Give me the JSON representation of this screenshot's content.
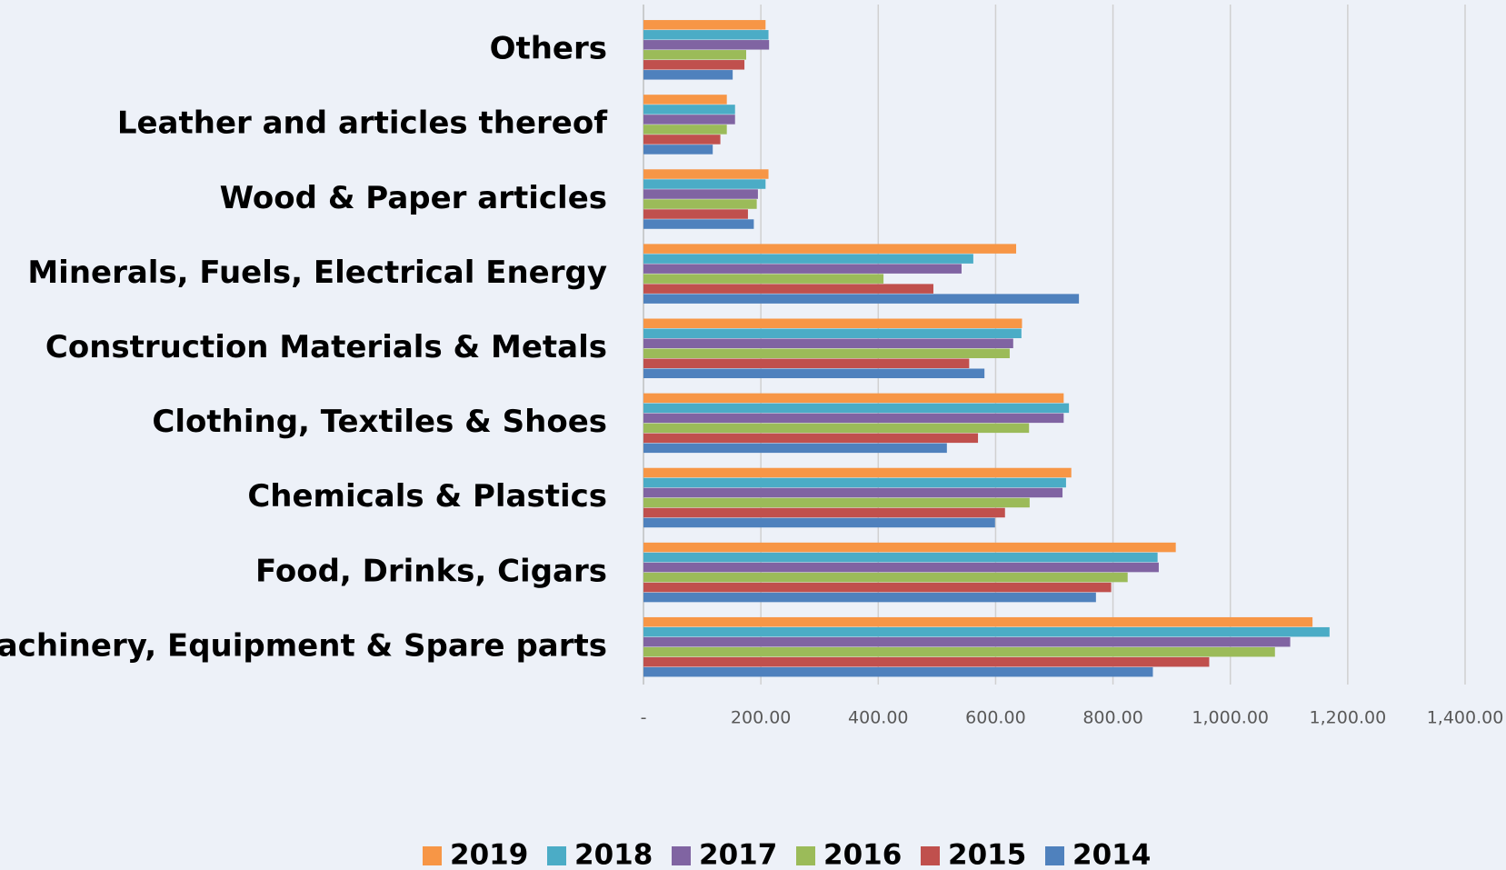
{
  "chart_data": {
    "type": "barh",
    "categories": [
      "Machinery, Equipment & Spare parts",
      "Food, Drinks, Cigars",
      "Chemicals & Plastics",
      "Clothing, Textiles & Shoes",
      "Construction Materials & Metals",
      "Minerals, Fuels, Electrical Energy",
      "Wood & Paper articles",
      "Leather and articles thereof",
      "Others"
    ],
    "series": [
      {
        "name": "2019",
        "color": "#f79646",
        "values": [
          1140,
          907,
          729,
          716,
          645,
          635,
          213,
          142,
          208
        ]
      },
      {
        "name": "2018",
        "color": "#4bacc6",
        "values": [
          1169,
          876,
          720,
          725,
          644,
          562,
          208,
          156,
          213
        ]
      },
      {
        "name": "2017",
        "color": "#8064a2",
        "values": [
          1102,
          878,
          714,
          716,
          630,
          542,
          195,
          156,
          214
        ]
      },
      {
        "name": "2016",
        "color": "#9bbb59",
        "values": [
          1076,
          825,
          658,
          657,
          624,
          409,
          193,
          142,
          175
        ]
      },
      {
        "name": "2015",
        "color": "#c0504d",
        "values": [
          964,
          797,
          616,
          570,
          555,
          494,
          178,
          131,
          172
        ]
      },
      {
        "name": "2014",
        "color": "#4f81bd",
        "values": [
          868,
          771,
          599,
          517,
          581,
          742,
          188,
          118,
          152
        ]
      }
    ],
    "xlim": [
      0,
      1400
    ],
    "xticks": [
      {
        "value": 0,
        "label": "-"
      },
      {
        "value": 200,
        "label": "200.00"
      },
      {
        "value": 400,
        "label": "400.00"
      },
      {
        "value": 600,
        "label": "600.00"
      },
      {
        "value": 800,
        "label": "800.00"
      },
      {
        "value": 1000,
        "label": "1,000.00"
      },
      {
        "value": 1200,
        "label": "1,200.00"
      },
      {
        "value": 1400,
        "label": "1,400.00"
      }
    ],
    "grid": true,
    "legend": "bottom"
  }
}
